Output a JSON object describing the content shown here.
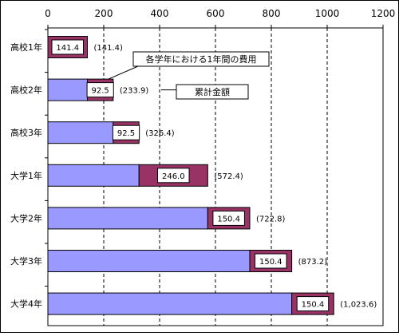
{
  "chart_data": {
    "type": "bar",
    "orientation": "horizontal",
    "stacked": true,
    "title": "",
    "xlabel": "",
    "ylabel": "",
    "xlim": [
      0,
      1200
    ],
    "x_ticks": [
      "0",
      "200",
      "400",
      "600",
      "800",
      "1000",
      "1200"
    ],
    "grid": "vertical dashed",
    "categories": [
      "高校1年",
      "高校2年",
      "高校3年",
      "大学1年",
      "大学2年",
      "大学3年",
      "大学4年"
    ],
    "series": [
      {
        "values": [
          0,
          141.4,
          233.9,
          326.4,
          572.4,
          722.8,
          873.2
        ],
        "color": "#9999ff"
      },
      {
        "values": [
          141.4,
          92.5,
          92.5,
          246.0,
          150.4,
          150.4,
          150.4
        ],
        "color": "#993366"
      }
    ],
    "bar_labels": [
      "141.4",
      "92.5",
      "92.5",
      "246.0",
      "150.4",
      "150.4",
      "150.4"
    ],
    "cumulative_labels": [
      "(141.4)",
      "(233.9)",
      "(326.4)",
      "(572.4)",
      "(722.8)",
      "(873.2)",
      "(1,023.6)"
    ],
    "annotations": [
      {
        "text": "各学年における1年間の費用",
        "points_to": "高校2年"
      },
      {
        "text": "累計金額",
        "points_to": "高校2年"
      }
    ]
  }
}
